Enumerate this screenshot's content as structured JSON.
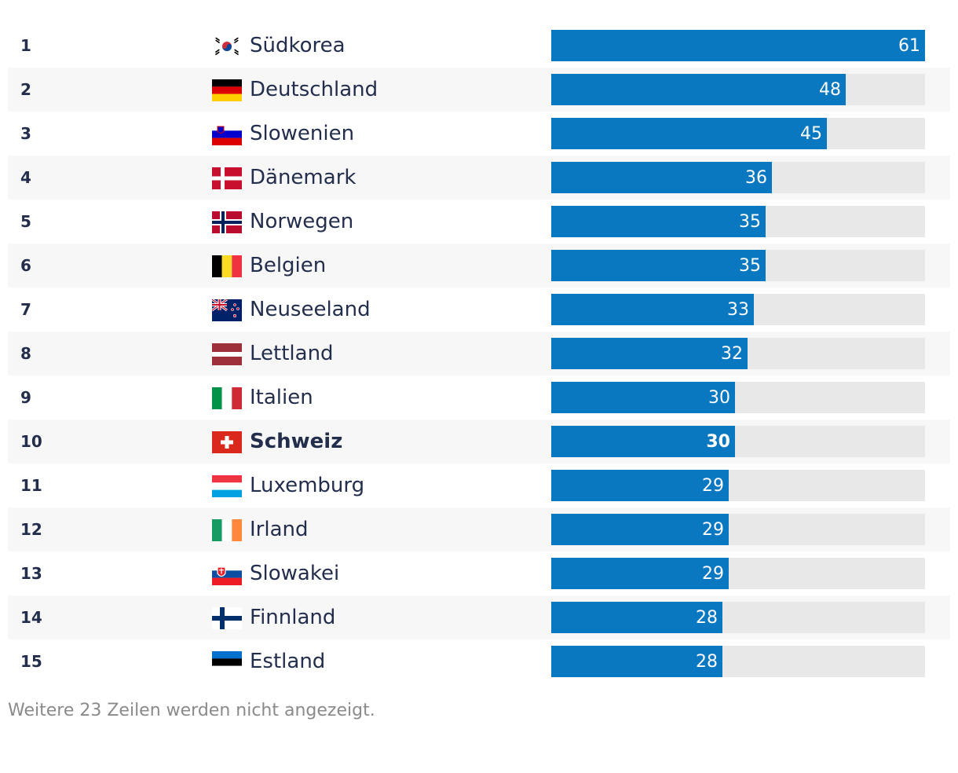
{
  "chart_data": {
    "type": "bar",
    "orientation": "horizontal",
    "xlim": [
      0,
      61
    ],
    "highlight": "Schweiz",
    "categories": [
      "Südkorea",
      "Deutschland",
      "Slowenien",
      "Dänemark",
      "Norwegen",
      "Belgien",
      "Neuseeland",
      "Lettland",
      "Italien",
      "Schweiz",
      "Luxemburg",
      "Irland",
      "Slowakei",
      "Finnland",
      "Estland"
    ],
    "values": [
      61,
      48,
      45,
      36,
      35,
      35,
      33,
      32,
      30,
      30,
      29,
      29,
      29,
      28,
      28
    ],
    "rows": [
      {
        "rank": "1",
        "country": "Südkorea",
        "value": 61,
        "flag": "south-korea-flag"
      },
      {
        "rank": "2",
        "country": "Deutschland",
        "value": 48,
        "flag": "germany-flag"
      },
      {
        "rank": "3",
        "country": "Slowenien",
        "value": 45,
        "flag": "slovenia-flag"
      },
      {
        "rank": "4",
        "country": "Dänemark",
        "value": 36,
        "flag": "denmark-flag"
      },
      {
        "rank": "5",
        "country": "Norwegen",
        "value": 35,
        "flag": "norway-flag"
      },
      {
        "rank": "6",
        "country": "Belgien",
        "value": 35,
        "flag": "belgium-flag"
      },
      {
        "rank": "7",
        "country": "Neuseeland",
        "value": 33,
        "flag": "new-zealand-flag"
      },
      {
        "rank": "8",
        "country": "Lettland",
        "value": 32,
        "flag": "latvia-flag"
      },
      {
        "rank": "9",
        "country": "Italien",
        "value": 30,
        "flag": "italy-flag"
      },
      {
        "rank": "10",
        "country": "Schweiz",
        "value": 30,
        "flag": "switzerland-flag"
      },
      {
        "rank": "11",
        "country": "Luxemburg",
        "value": 29,
        "flag": "luxembourg-flag"
      },
      {
        "rank": "12",
        "country": "Irland",
        "value": 29,
        "flag": "ireland-flag"
      },
      {
        "rank": "13",
        "country": "Slowakei",
        "value": 29,
        "flag": "slovakia-flag"
      },
      {
        "rank": "14",
        "country": "Finnland",
        "value": 28,
        "flag": "finland-flag"
      },
      {
        "rank": "15",
        "country": "Estland",
        "value": 28,
        "flag": "estonia-flag"
      }
    ]
  },
  "colors": {
    "bar": "#0a78c0",
    "track": "#e8e8e8",
    "text": "#232e4d",
    "footnote": "#8a8a8a",
    "row_alt": "#f7f7f7"
  },
  "footnote": "Weitere 23 Zeilen werden nicht angezeigt."
}
